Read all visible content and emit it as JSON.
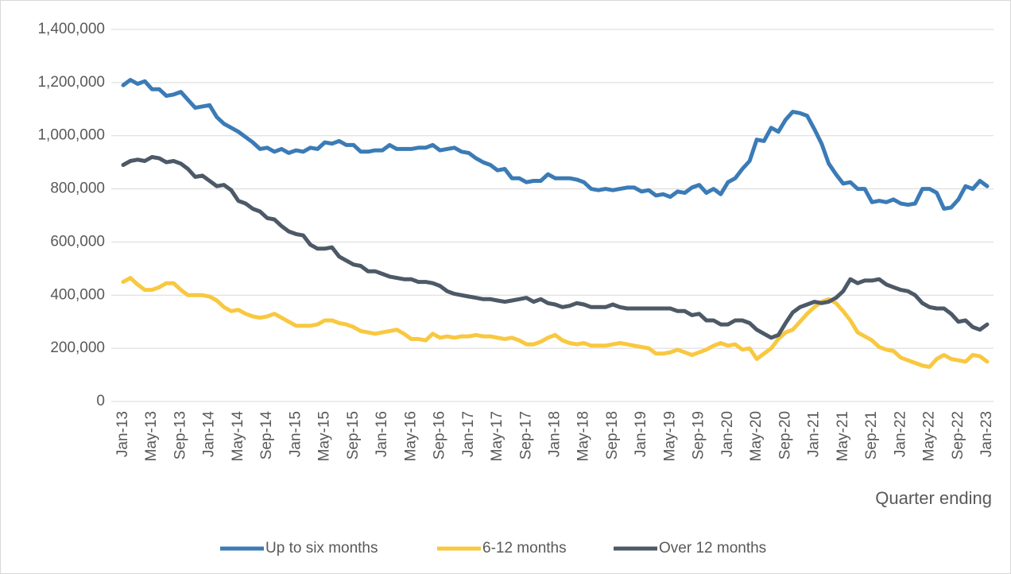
{
  "chart_data": {
    "type": "line",
    "x_label": "Quarter ending",
    "categories": [
      "Jan-13",
      null,
      null,
      null,
      "May-13",
      null,
      null,
      null,
      "Sep-13",
      null,
      null,
      null,
      "Jan-14",
      null,
      null,
      null,
      "May-14",
      null,
      null,
      null,
      "Sep-14",
      null,
      null,
      null,
      "Jan-15",
      null,
      null,
      null,
      "May-15",
      null,
      null,
      null,
      "Sep-15",
      null,
      null,
      null,
      "Jan-16",
      null,
      null,
      null,
      "May-16",
      null,
      null,
      null,
      "Sep-16",
      null,
      null,
      null,
      "Jan-17",
      null,
      null,
      null,
      "May-17",
      null,
      null,
      null,
      "Sep-17",
      null,
      null,
      null,
      "Jan-18",
      null,
      null,
      null,
      "May-18",
      null,
      null,
      null,
      "Sep-18",
      null,
      null,
      null,
      "Jan-19",
      null,
      null,
      null,
      "May-19",
      null,
      null,
      null,
      "Sep-19",
      null,
      null,
      null,
      "Jan-20",
      null,
      null,
      null,
      "May-20",
      null,
      null,
      null,
      "Sep-20",
      null,
      null,
      null,
      "Jan-21",
      null,
      null,
      null,
      "May-21",
      null,
      null,
      null,
      "Sep-21",
      null,
      null,
      null,
      "Jan-22",
      null,
      null,
      null,
      "May-22",
      null,
      null,
      null,
      "Sep-22",
      null,
      null,
      null,
      "Jan-23"
    ],
    "series": [
      {
        "name": "Up to six months",
        "color": "#3b7bb6",
        "values": [
          1190000,
          1210000,
          1195000,
          1205000,
          1175000,
          1175000,
          1150000,
          1155000,
          1165000,
          1135000,
          1105000,
          1110000,
          1115000,
          1070000,
          1045000,
          1030000,
          1015000,
          995000,
          975000,
          950000,
          955000,
          940000,
          950000,
          935000,
          945000,
          940000,
          955000,
          950000,
          975000,
          970000,
          980000,
          965000,
          965000,
          940000,
          940000,
          945000,
          945000,
          965000,
          950000,
          950000,
          950000,
          955000,
          955000,
          965000,
          945000,
          950000,
          955000,
          940000,
          935000,
          915000,
          900000,
          890000,
          870000,
          875000,
          840000,
          840000,
          825000,
          830000,
          830000,
          855000,
          840000,
          840000,
          840000,
          835000,
          825000,
          800000,
          795000,
          800000,
          795000,
          800000,
          805000,
          805000,
          790000,
          795000,
          775000,
          780000,
          770000,
          790000,
          785000,
          805000,
          815000,
          785000,
          800000,
          780000,
          825000,
          840000,
          875000,
          905000,
          985000,
          980000,
          1030000,
          1015000,
          1060000,
          1090000,
          1085000,
          1075000,
          1025000,
          970000,
          895000,
          855000,
          820000,
          825000,
          800000,
          800000,
          750000,
          755000,
          750000,
          760000,
          745000,
          740000,
          745000,
          800000,
          800000,
          785000,
          725000,
          730000,
          760000,
          810000,
          800000,
          830000,
          810000
        ]
      },
      {
        "name": "6-12 months",
        "color": "#f8c840",
        "values": [
          450000,
          465000,
          440000,
          420000,
          420000,
          430000,
          445000,
          445000,
          420000,
          400000,
          400000,
          400000,
          395000,
          380000,
          355000,
          340000,
          345000,
          330000,
          320000,
          315000,
          320000,
          330000,
          315000,
          300000,
          285000,
          285000,
          285000,
          290000,
          305000,
          305000,
          295000,
          290000,
          280000,
          265000,
          260000,
          255000,
          260000,
          265000,
          270000,
          255000,
          235000,
          235000,
          230000,
          255000,
          240000,
          245000,
          240000,
          245000,
          245000,
          250000,
          245000,
          245000,
          240000,
          235000,
          240000,
          230000,
          215000,
          215000,
          225000,
          240000,
          250000,
          230000,
          220000,
          215000,
          220000,
          210000,
          210000,
          210000,
          215000,
          220000,
          215000,
          210000,
          205000,
          200000,
          180000,
          180000,
          185000,
          195000,
          185000,
          175000,
          185000,
          195000,
          210000,
          220000,
          210000,
          215000,
          195000,
          200000,
          160000,
          180000,
          200000,
          235000,
          260000,
          270000,
          300000,
          330000,
          355000,
          375000,
          385000,
          370000,
          340000,
          305000,
          260000,
          245000,
          230000,
          205000,
          195000,
          190000,
          165000,
          155000,
          145000,
          135000,
          130000,
          160000,
          175000,
          160000,
          155000,
          150000,
          175000,
          170000,
          150000
        ]
      },
      {
        "name": "Over 12 months",
        "color": "#4d5967",
        "values": [
          890000,
          905000,
          910000,
          905000,
          920000,
          915000,
          900000,
          905000,
          895000,
          875000,
          845000,
          850000,
          830000,
          810000,
          815000,
          795000,
          755000,
          745000,
          725000,
          715000,
          690000,
          685000,
          660000,
          640000,
          630000,
          625000,
          590000,
          575000,
          575000,
          580000,
          545000,
          530000,
          515000,
          510000,
          490000,
          490000,
          480000,
          470000,
          465000,
          460000,
          460000,
          450000,
          450000,
          445000,
          435000,
          415000,
          405000,
          400000,
          395000,
          390000,
          385000,
          385000,
          380000,
          375000,
          380000,
          385000,
          390000,
          375000,
          385000,
          370000,
          365000,
          355000,
          360000,
          370000,
          365000,
          355000,
          355000,
          355000,
          365000,
          355000,
          350000,
          350000,
          350000,
          350000,
          350000,
          350000,
          350000,
          340000,
          340000,
          325000,
          330000,
          305000,
          305000,
          290000,
          290000,
          305000,
          305000,
          295000,
          270000,
          255000,
          240000,
          250000,
          295000,
          335000,
          355000,
          365000,
          375000,
          370000,
          375000,
          390000,
          415000,
          460000,
          445000,
          455000,
          455000,
          460000,
          440000,
          430000,
          420000,
          415000,
          400000,
          370000,
          355000,
          350000,
          350000,
          330000,
          300000,
          305000,
          280000,
          270000,
          290000
        ]
      }
    ],
    "ylim": [
      0,
      1400000
    ],
    "yticks": [
      0,
      {
        "value": 200000,
        "label": "200,000"
      },
      {
        "value": 400000,
        "label": "400,000"
      },
      {
        "value": 600000,
        "label": "600,000"
      },
      {
        "value": 800000,
        "label": "800,000"
      },
      {
        "value": 1000000,
        "label": "1,000,000"
      },
      {
        "value": 1200000,
        "label": "1,200,000"
      },
      {
        "value": 1400000,
        "label": "1,400,000"
      }
    ],
    "grid": true,
    "legend": "bottom"
  }
}
